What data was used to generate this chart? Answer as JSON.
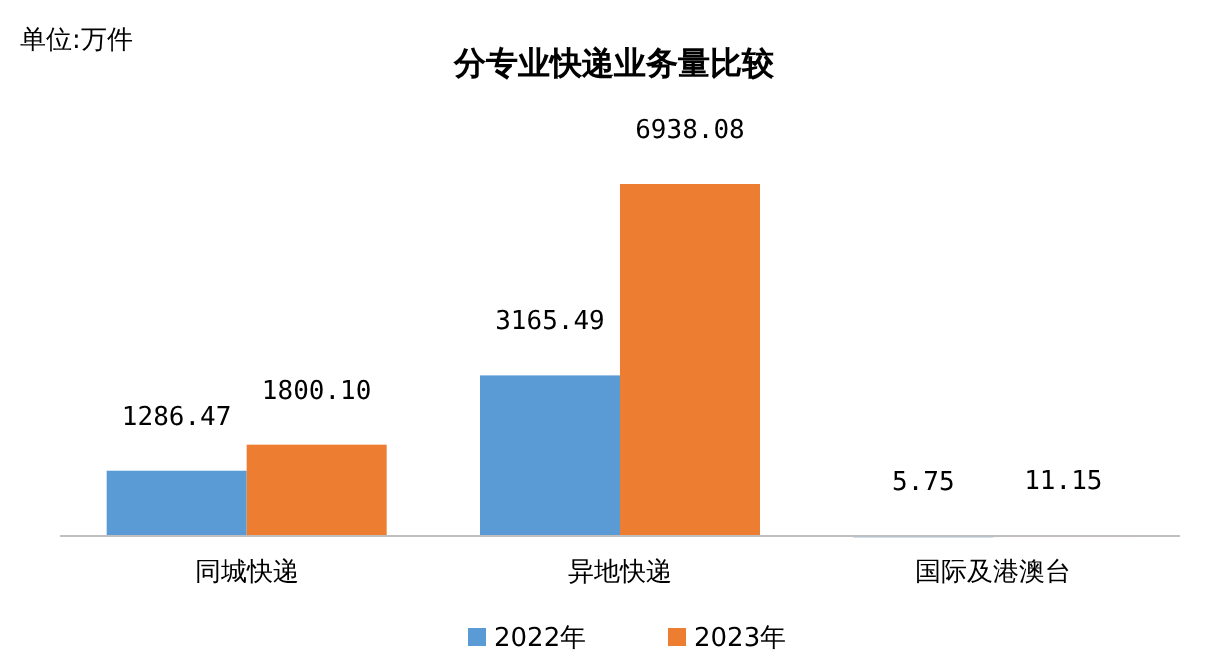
{
  "chart_data": {
    "type": "bar",
    "title": "分专业快递业务量比较",
    "annotations": [
      "单位:万件"
    ],
    "categories": [
      "同城快递",
      "异地快递",
      "国际及港澳台"
    ],
    "series": [
      {
        "name": "2022年",
        "color": "#5b9bd5",
        "values": [
          1286.47,
          3165.49,
          5.75
        ],
        "value_labels": [
          "1286.47",
          "3165.49",
          "5.75"
        ]
      },
      {
        "name": "2023年",
        "color": "#ed7d31",
        "values": [
          1800.1,
          6938.08,
          11.15
        ],
        "value_labels": [
          "1800.10",
          "6938.08",
          "11.15"
        ]
      }
    ],
    "legend": "bottom"
  }
}
